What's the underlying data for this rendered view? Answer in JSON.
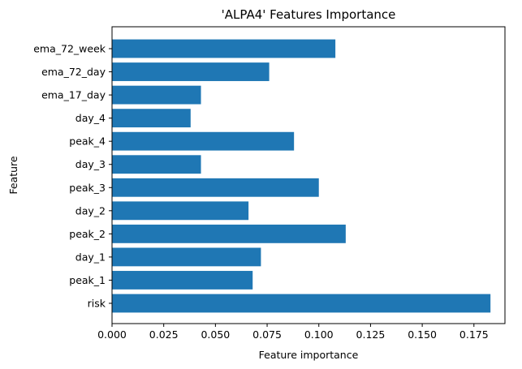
{
  "chart_data": {
    "type": "bar",
    "orientation": "horizontal",
    "title": "'ALPA4' Features Importance",
    "xlabel": "Feature importance",
    "ylabel": "Feature",
    "categories": [
      "risk",
      "peak_1",
      "day_1",
      "peak_2",
      "day_2",
      "peak_3",
      "day_3",
      "peak_4",
      "day_4",
      "ema_17_day",
      "ema_72_day",
      "ema_72_week"
    ],
    "values": [
      0.183,
      0.068,
      0.072,
      0.113,
      0.066,
      0.1,
      0.043,
      0.088,
      0.038,
      0.043,
      0.076,
      0.108
    ],
    "xlim": [
      0,
      0.19
    ],
    "xticks": [
      "0.000",
      "0.025",
      "0.050",
      "0.075",
      "0.100",
      "0.125",
      "0.150",
      "0.175"
    ],
    "bar_color": "#1f77b4",
    "grid": false
  }
}
